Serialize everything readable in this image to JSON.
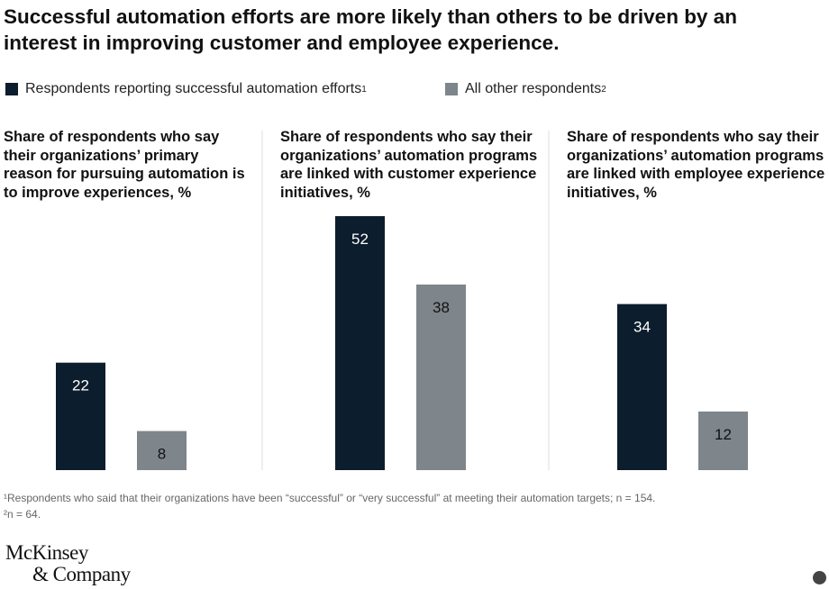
{
  "title": "Successful automation efforts are more likely than others to be driven by an interest in improving customer and employee experience.",
  "legend": [
    {
      "label": "Respondents reporting successful automation efforts",
      "sup": "1",
      "color": "#0c1d2d"
    },
    {
      "label": "All other respondents",
      "sup": "2",
      "color": "#7e858b"
    }
  ],
  "chart_data": [
    {
      "type": "bar",
      "title": "Share of respondents who say their organizations’ primary reason for pursuing automation is to improve experiences, %",
      "series": [
        {
          "name": "Respondents reporting successful automation efforts",
          "values": [
            22
          ]
        },
        {
          "name": "All other respondents",
          "values": [
            8
          ]
        }
      ],
      "ylim": [
        0,
        52
      ]
    },
    {
      "type": "bar",
      "title": "Share of respondents who say their organizations’ automation programs are linked with customer experience initiatives, %",
      "series": [
        {
          "name": "Respondents reporting successful automation efforts",
          "values": [
            52
          ]
        },
        {
          "name": "All other respondents",
          "values": [
            38
          ]
        }
      ],
      "ylim": [
        0,
        52
      ]
    },
    {
      "type": "bar",
      "title": "Share of respondents who say their organizations’ automation programs are linked with employee experience initiatives, %",
      "series": [
        {
          "name": "Respondents reporting successful automation efforts",
          "values": [
            34
          ]
        },
        {
          "name": "All other respondents",
          "values": [
            12
          ]
        }
      ],
      "ylim": [
        0,
        52
      ]
    }
  ],
  "footnotes": [
    "¹Respondents who said that their organizations have been “successful” or “very successful” at meeting their automation targets; n = 154.",
    "²n = 64."
  ],
  "logo": {
    "line1": "McKinsey",
    "line2": "& Company"
  }
}
